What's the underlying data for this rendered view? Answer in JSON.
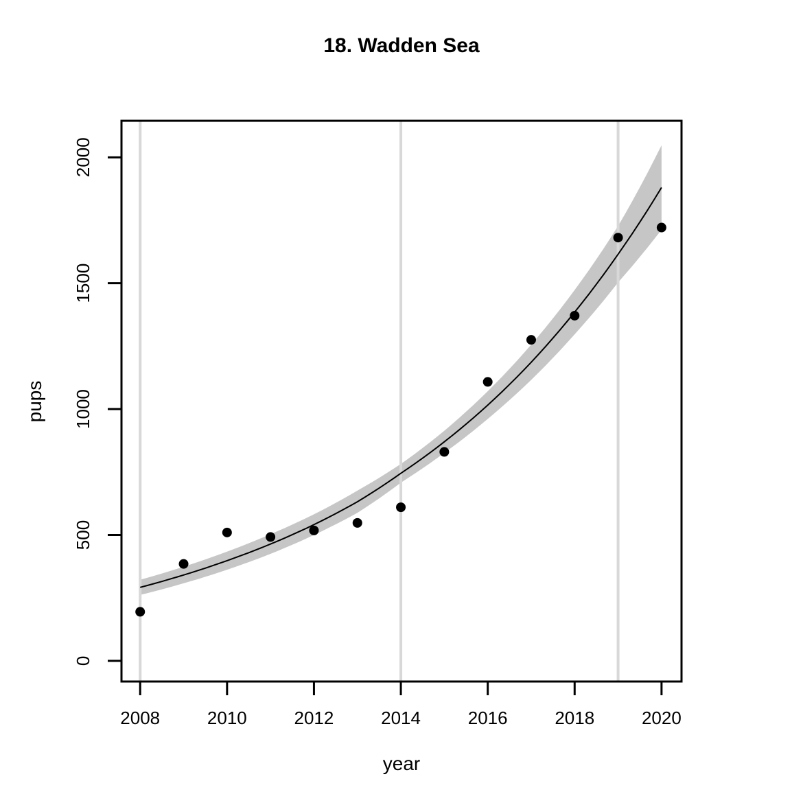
{
  "chart_data": {
    "type": "scatter",
    "title": "18. Wadden Sea",
    "xlabel": "year",
    "ylabel": "pups",
    "x": [
      2008,
      2009,
      2010,
      2011,
      2012,
      2013,
      2014,
      2015,
      2016,
      2017,
      2018,
      2019,
      2020
    ],
    "points": [
      195,
      385,
      510,
      492,
      518,
      548,
      610,
      830,
      1108,
      1275,
      1371,
      1681,
      1721
    ],
    "fit": [
      292,
      341,
      398,
      464,
      541,
      632,
      745,
      870,
      1016,
      1186,
      1385,
      1615,
      1880
    ],
    "band_lower": [
      262,
      308,
      362,
      425,
      500,
      588,
      708,
      826,
      961,
      1116,
      1297,
      1503,
      1712
    ],
    "band_upper": [
      322,
      374,
      434,
      503,
      582,
      676,
      782,
      914,
      1071,
      1256,
      1473,
      1727,
      2048
    ],
    "vlines": [
      2008,
      2014,
      2019
    ],
    "x_ticks": [
      2008,
      2010,
      2012,
      2014,
      2016,
      2018,
      2020
    ],
    "y_ticks": [
      0,
      500,
      1000,
      1500,
      2000
    ],
    "xlim": [
      2007.57,
      2020.46
    ],
    "ylim": [
      -82,
      2145
    ],
    "grid": "vertical-reference-lines-only",
    "legend": "none",
    "colors": {
      "band": "#c6c6c6",
      "gridline": "#d8d8d8",
      "point": "#000000",
      "fit_line": "#000000",
      "box": "#000000"
    }
  }
}
